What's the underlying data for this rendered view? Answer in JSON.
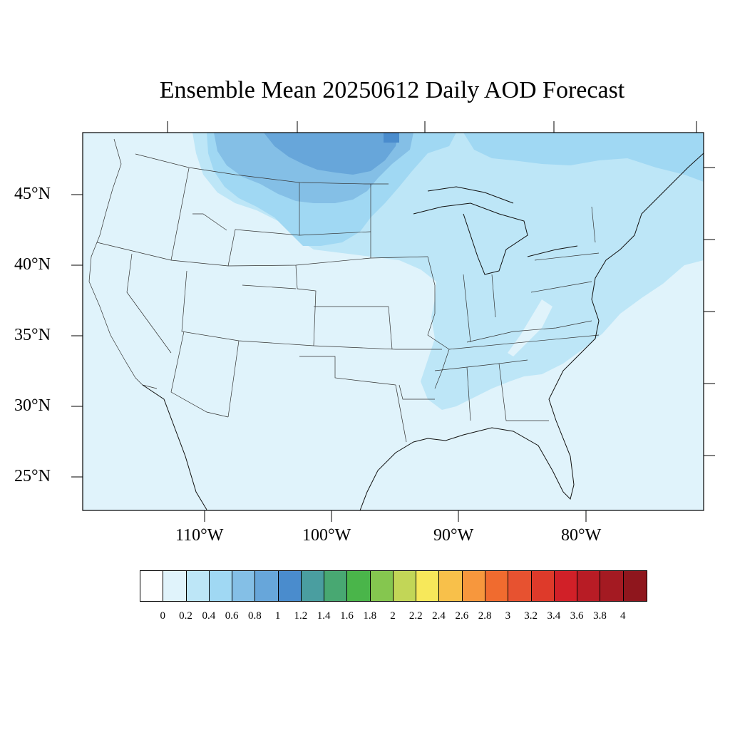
{
  "title": "Ensemble Mean 20250612 Daily AOD Forecast",
  "lat_labels": [
    {
      "text": "45°N",
      "value": 45
    },
    {
      "text": "40°N",
      "value": 40
    },
    {
      "text": "35°N",
      "value": 35
    },
    {
      "text": "30°N",
      "value": 30
    },
    {
      "text": "25°N",
      "value": 25
    }
  ],
  "lon_labels": [
    {
      "text": "110°W",
      "value": -110
    },
    {
      "text": "100°W",
      "value": -100
    },
    {
      "text": "90°W",
      "value": -90
    },
    {
      "text": "80°W",
      "value": -80
    }
  ],
  "colorbar": {
    "labels": [
      "0",
      "0.2",
      "0.4",
      "0.6",
      "0.8",
      "1",
      "1.2",
      "1.4",
      "1.6",
      "1.8",
      "2",
      "2.2",
      "2.4",
      "2.6",
      "2.8",
      "3",
      "3.2",
      "3.4",
      "3.6",
      "3.8",
      "4"
    ],
    "colors": [
      "#ffffff",
      "#e0f3fb",
      "#bde6f7",
      "#a0d8f3",
      "#84bfe6",
      "#67a6da",
      "#4a8ccd",
      "#4a9ea0",
      "#48a872",
      "#4ab54a",
      "#85c64f",
      "#c2d657",
      "#f7e85a",
      "#f8c04a",
      "#f7973d",
      "#f06b2f",
      "#e75230",
      "#de3a2a",
      "#d12028",
      "#b81c25",
      "#a41a22",
      "#8f161d"
    ]
  },
  "map": {
    "background_color": "#e0f3fb",
    "light_band_color": "#bde6f7",
    "medium_band_color": "#a0d8f3",
    "dark_band_color": "#84bfe6",
    "darkest_band_color": "#67a6da"
  }
}
